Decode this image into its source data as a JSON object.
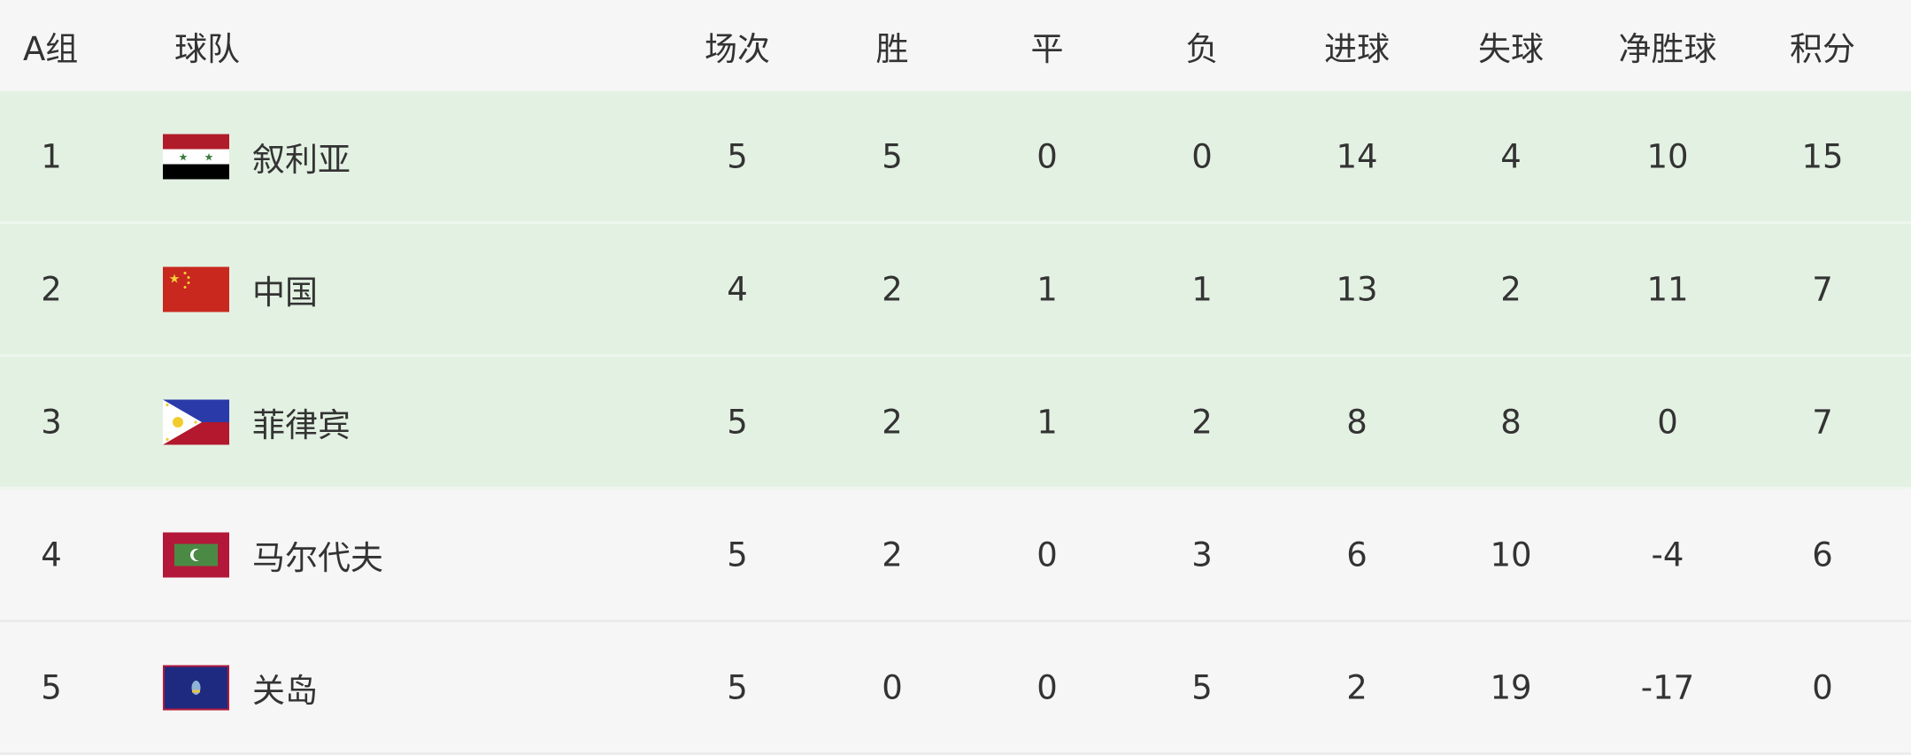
{
  "header": {
    "group": "A组",
    "team": "球队",
    "cols": [
      "场次",
      "胜",
      "平",
      "负",
      "进球",
      "失球",
      "净胜球",
      "积分"
    ]
  },
  "colors": {
    "qualified_row": "#e3f1e3",
    "normal_row": "#f6f6f6",
    "text": "#333333"
  },
  "rows": [
    {
      "rank": "1",
      "team": "叙利亚",
      "flag": "syria-flag-icon",
      "stats": [
        "5",
        "5",
        "0",
        "0",
        "14",
        "4",
        "10",
        "15"
      ],
      "highlight": true
    },
    {
      "rank": "2",
      "team": "中国",
      "flag": "china-flag-icon",
      "stats": [
        "4",
        "2",
        "1",
        "1",
        "13",
        "2",
        "11",
        "7"
      ],
      "highlight": true
    },
    {
      "rank": "3",
      "team": "菲律宾",
      "flag": "philippines-flag-icon",
      "stats": [
        "5",
        "2",
        "1",
        "2",
        "8",
        "8",
        "0",
        "7"
      ],
      "highlight": true
    },
    {
      "rank": "4",
      "team": "马尔代夫",
      "flag": "maldives-flag-icon",
      "stats": [
        "5",
        "2",
        "0",
        "3",
        "6",
        "10",
        "-4",
        "6"
      ],
      "highlight": false
    },
    {
      "rank": "5",
      "team": "关岛",
      "flag": "guam-flag-icon",
      "stats": [
        "5",
        "0",
        "0",
        "5",
        "2",
        "19",
        "-17",
        "0"
      ],
      "highlight": false
    }
  ]
}
